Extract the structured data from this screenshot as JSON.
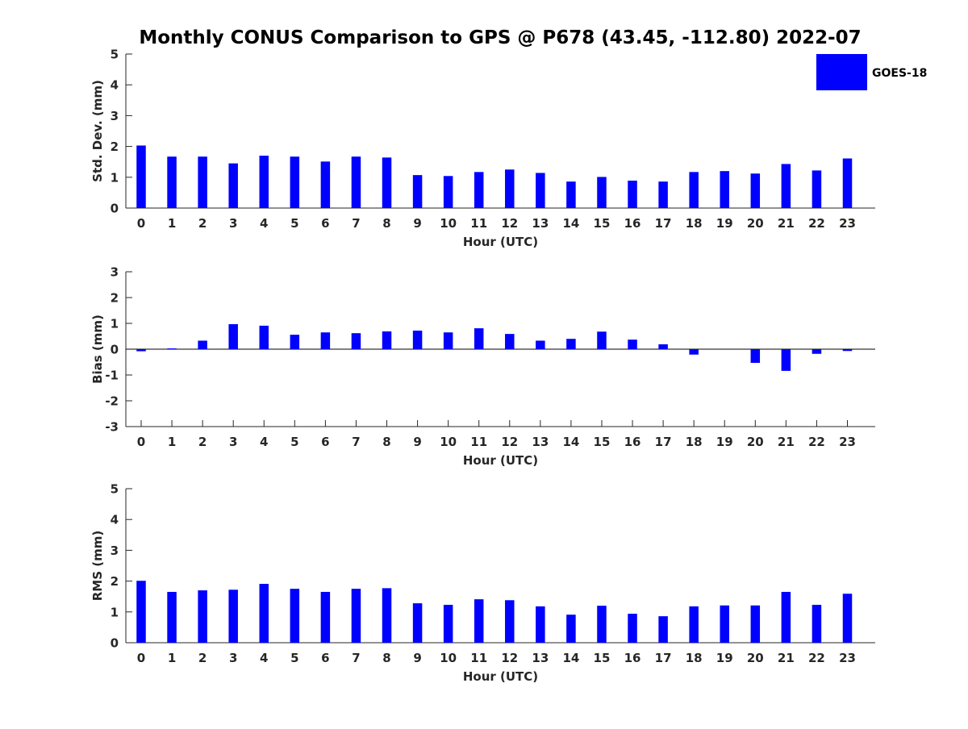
{
  "chart_data": {
    "type": "bar",
    "title": "Monthly CONUS Comparison to GPS @ P678 (43.45, -112.80) 2022-07",
    "legend": {
      "label": "GOES-18",
      "position": "top-right"
    },
    "bar_color": "#0000ff",
    "categories": [
      "0",
      "1",
      "2",
      "3",
      "4",
      "5",
      "6",
      "7",
      "8",
      "9",
      "10",
      "11",
      "12",
      "13",
      "14",
      "15",
      "16",
      "17",
      "18",
      "19",
      "20",
      "21",
      "22",
      "23"
    ],
    "panels": [
      {
        "id": "std",
        "ylabel": "Std. Dev. (mm)",
        "xlabel": "Hour (UTC)",
        "ylim": [
          0,
          5
        ],
        "yticks": [
          0,
          1,
          2,
          3,
          4,
          5
        ],
        "values": [
          2.03,
          1.67,
          1.67,
          1.45,
          1.7,
          1.67,
          1.51,
          1.67,
          1.64,
          1.07,
          1.04,
          1.17,
          1.25,
          1.14,
          0.86,
          1.01,
          0.89,
          0.86,
          1.17,
          1.2,
          1.12,
          1.43,
          1.22,
          1.61
        ]
      },
      {
        "id": "bias",
        "ylabel": "Bias (mm)",
        "xlabel": "Hour (UTC)",
        "ylim": [
          -3,
          3
        ],
        "yticks": [
          -3,
          -2,
          -1,
          0,
          1,
          2,
          3
        ],
        "values": [
          -0.08,
          0.03,
          0.33,
          0.97,
          0.91,
          0.56,
          0.65,
          0.62,
          0.69,
          0.72,
          0.65,
          0.81,
          0.59,
          0.33,
          0.4,
          0.68,
          0.37,
          0.19,
          -0.21,
          0.0,
          -0.53,
          -0.84,
          -0.18,
          -0.07
        ]
      },
      {
        "id": "rms",
        "ylabel": "RMS (mm)",
        "xlabel": "Hour (UTC)",
        "ylim": [
          0,
          5
        ],
        "yticks": [
          0,
          1,
          2,
          3,
          4,
          5
        ],
        "values": [
          2.01,
          1.65,
          1.7,
          1.72,
          1.91,
          1.75,
          1.65,
          1.75,
          1.77,
          1.28,
          1.23,
          1.41,
          1.38,
          1.18,
          0.91,
          1.2,
          0.94,
          0.86,
          1.18,
          1.21,
          1.21,
          1.65,
          1.23,
          1.59
        ]
      }
    ]
  }
}
